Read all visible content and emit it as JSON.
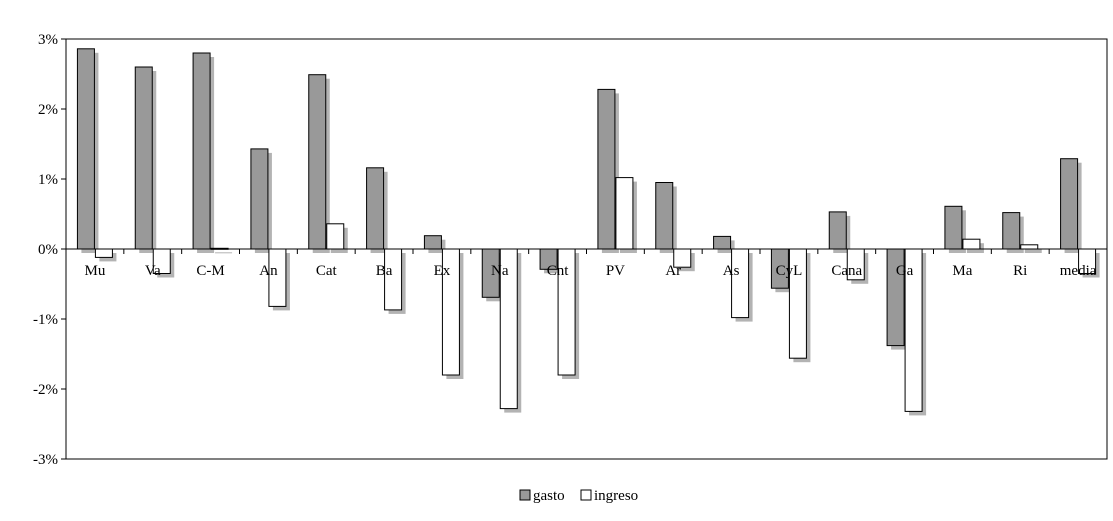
{
  "chart_data": {
    "type": "bar",
    "categories": [
      "Mu",
      "Va",
      "C-M",
      "An",
      "Cat",
      "Ba",
      "Ex",
      "Na",
      "Cnt",
      "PV",
      "Ar",
      "As",
      "CyL",
      "Cana",
      "Ga",
      "Ma",
      "Ri",
      "media"
    ],
    "series": [
      {
        "name": "gasto",
        "color": "#999999",
        "values": [
          2.86,
          2.6,
          2.8,
          1.43,
          2.49,
          1.16,
          0.19,
          -0.69,
          -0.29,
          2.28,
          0.95,
          0.18,
          -0.56,
          0.53,
          -1.38,
          0.61,
          0.52,
          1.29
        ]
      },
      {
        "name": "ingreso",
        "color": "#ffffff",
        "values": [
          -0.12,
          -0.35,
          0.01,
          -0.82,
          0.36,
          -0.87,
          -1.8,
          -2.28,
          -1.8,
          1.02,
          -0.26,
          -0.98,
          -1.56,
          -0.44,
          -2.32,
          0.14,
          0.06,
          -0.35
        ]
      }
    ],
    "yticks": [
      "3%",
      "2%",
      "1%",
      "0%",
      "-1%",
      "-2%",
      "-3%"
    ],
    "ylim": [
      -3,
      3
    ],
    "legend_position": "bottom-center",
    "grid": false
  }
}
